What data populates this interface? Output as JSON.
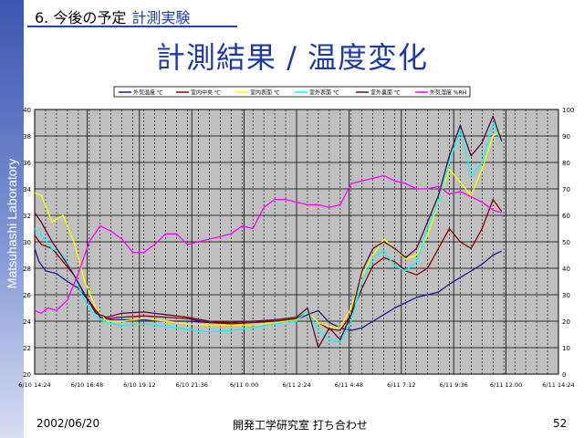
{
  "sidebar": {
    "label": "Matsuhashi Laboratory"
  },
  "header": {
    "section": "6. 今後の予定",
    "topic": "計測実験"
  },
  "title": "計測結果 / 温度変化",
  "colors": {
    "accent": "#1e3aa0",
    "plot_bg": "#c0c0c0"
  },
  "footer": {
    "date": "2002/06/20",
    "meeting": "開発工学研究室 打ち合わせ",
    "page": "52"
  },
  "chart_data": {
    "type": "line",
    "legend_position": "top",
    "grid": true,
    "x_tick_labels": [
      "6/10 14:24",
      "6/10 16:48",
      "6/10 19:12",
      "6/10 21:36",
      "6/11 0:00",
      "6/11 2:24",
      "6/11 4:48",
      "6/11 7:12",
      "6/11 9:36",
      "6/11 12:00",
      "6/11 14:24"
    ],
    "x_range_hours": [
      0,
      24
    ],
    "y_left": {
      "range": [
        20,
        40
      ],
      "ticks": [
        20,
        22,
        24,
        26,
        28,
        30,
        32,
        34,
        36,
        38,
        40
      ]
    },
    "y_right": {
      "range": [
        0,
        100
      ],
      "ticks": [
        0,
        10,
        20,
        30,
        40,
        50,
        60,
        70,
        80,
        90,
        100
      ]
    },
    "series": [
      {
        "name": "外気温度 ℃",
        "color": "#1a1a8c",
        "axis": "left",
        "x": [
          0,
          0.2,
          0.5,
          1,
          1.5,
          2,
          2.5,
          3,
          3.5,
          4,
          5,
          6,
          7,
          8,
          9,
          10,
          11,
          12,
          12.5,
          13,
          13.5,
          14,
          14.5,
          15,
          15.5,
          16,
          16.5,
          17,
          17.5,
          18,
          18.5,
          19,
          19.5,
          20,
          20.5,
          21,
          21.4
        ],
        "y": [
          29.5,
          28.5,
          27.8,
          27.6,
          27.0,
          26.5,
          25.5,
          24.3,
          24.1,
          24.1,
          24.1,
          24.0,
          24.0,
          23.9,
          23.9,
          24.0,
          24.0,
          24.1,
          24.5,
          24.8,
          23.9,
          23.5,
          23.3,
          23.5,
          24.0,
          24.5,
          25.0,
          25.4,
          25.8,
          26.0,
          26.2,
          26.8,
          27.3,
          27.8,
          28.3,
          29.0,
          29.3
        ]
      },
      {
        "name": "室内中央 ℃",
        "color": "#8b0000",
        "axis": "left",
        "x": [
          0,
          0.3,
          0.8,
          1.3,
          1.8,
          2.3,
          2.8,
          3.3,
          4,
          5,
          6,
          7,
          8,
          9,
          10,
          11,
          12,
          12.5,
          13,
          13.5,
          14,
          14.5,
          15,
          15.5,
          16,
          16.5,
          17,
          17.5,
          18,
          18.5,
          19,
          19.5,
          20,
          20.5,
          21,
          21.4
        ],
        "y": [
          30.5,
          29.8,
          29.5,
          28.5,
          27.5,
          26.0,
          24.8,
          24.2,
          24.3,
          24.4,
          24.3,
          24.2,
          23.9,
          23.8,
          23.9,
          24.0,
          24.2,
          24.7,
          23.9,
          23.4,
          23.3,
          24.5,
          26.5,
          28.2,
          28.8,
          28.5,
          27.8,
          27.5,
          28.0,
          29.5,
          31.0,
          30.0,
          29.5,
          31.0,
          33.2,
          32.3
        ]
      },
      {
        "name": "室内表面 ℃",
        "color": "#ffff00",
        "axis": "left",
        "x": [
          0,
          0.3,
          0.8,
          1.3,
          1.8,
          2.3,
          2.8,
          3.3,
          4,
          5,
          6,
          7,
          8,
          9,
          10,
          11,
          12,
          12.5,
          13,
          13.5,
          14,
          14.5,
          15,
          15.5,
          16,
          16.5,
          17,
          17.5,
          18,
          18.5,
          19,
          19.5,
          20,
          20.5,
          21,
          21.4
        ],
        "y": [
          33.7,
          33.5,
          31.5,
          32.0,
          30.0,
          27.0,
          25.0,
          24.0,
          24.0,
          24.2,
          24.0,
          23.8,
          23.7,
          23.7,
          23.7,
          23.9,
          24.1,
          24.7,
          23.9,
          23.6,
          23.5,
          25.0,
          27.5,
          29.0,
          30.2,
          29.5,
          28.7,
          29.0,
          30.5,
          33.0,
          35.5,
          34.5,
          33.5,
          35.5,
          38.0,
          38.4
        ]
      },
      {
        "name": "室外表面 ℃",
        "color": "#00ffff",
        "axis": "left",
        "x": [
          0,
          0.3,
          0.8,
          1.3,
          1.8,
          2.3,
          2.8,
          3.3,
          4,
          5,
          6,
          7,
          8,
          9,
          10,
          11,
          12,
          12.5,
          13,
          13.5,
          14,
          14.5,
          15,
          15.5,
          16,
          16.5,
          17,
          17.5,
          18,
          18.5,
          19,
          19.5,
          20,
          20.5,
          21,
          21.4
        ],
        "y": [
          31.0,
          30.5,
          29.5,
          29.0,
          27.5,
          25.5,
          24.3,
          23.9,
          23.7,
          23.8,
          23.6,
          23.4,
          23.2,
          23.3,
          23.5,
          23.8,
          24.0,
          24.8,
          23.3,
          22.6,
          22.4,
          24.0,
          27.0,
          28.8,
          29.3,
          28.2,
          27.8,
          28.5,
          31.0,
          33.0,
          36.0,
          38.5,
          35.0,
          36.0,
          39.0,
          37.5
        ]
      },
      {
        "name": "室外裏面 ℃",
        "color": "#5a0a3c",
        "axis": "left",
        "x": [
          0,
          0.3,
          0.8,
          1.3,
          1.8,
          2.3,
          2.8,
          3.3,
          4,
          5,
          6,
          7,
          8,
          9,
          10,
          11,
          12,
          12.5,
          13,
          13.5,
          14,
          14.5,
          15,
          15.5,
          16,
          16.5,
          17,
          17.5,
          18,
          18.5,
          19,
          19.5,
          20,
          20.5,
          21,
          21.4
        ],
        "y": [
          32.2,
          31.5,
          30.0,
          28.8,
          27.5,
          26.0,
          24.6,
          24.3,
          24.6,
          24.7,
          24.5,
          24.3,
          24.0,
          23.9,
          24.0,
          24.1,
          24.3,
          25.0,
          22.0,
          23.5,
          22.6,
          24.5,
          27.8,
          29.5,
          30.0,
          29.5,
          28.8,
          29.5,
          31.5,
          33.5,
          36.5,
          38.8,
          36.5,
          37.5,
          39.5,
          37.6
        ]
      },
      {
        "name": "外気湿度 %RH",
        "color": "#ff00ff",
        "axis": "right",
        "x": [
          0,
          0.3,
          0.6,
          1.0,
          1.5,
          2.0,
          2.5,
          3.0,
          3.5,
          4.0,
          4.5,
          5.0,
          5.5,
          6.0,
          6.5,
          7.0,
          8.0,
          8.5,
          9.0,
          9.5,
          10.0,
          10.5,
          11.0,
          11.5,
          12.0,
          12.5,
          13.0,
          13.5,
          14.0,
          14.5,
          15.0,
          15.5,
          16.0,
          16.5,
          17.0,
          17.5,
          18.0,
          18.5,
          19.0,
          19.5,
          20.0,
          20.5,
          21.0,
          21.4
        ],
        "y": [
          24,
          23,
          25,
          24,
          28,
          38,
          50,
          56,
          54,
          51,
          46,
          46,
          49,
          53,
          53,
          49,
          51,
          52,
          53,
          56,
          55,
          63,
          66,
          66,
          65,
          64,
          64,
          63,
          64,
          72,
          73,
          74,
          75,
          73,
          72,
          70,
          70,
          71,
          68,
          69,
          67,
          65,
          62,
          61
        ]
      }
    ]
  }
}
